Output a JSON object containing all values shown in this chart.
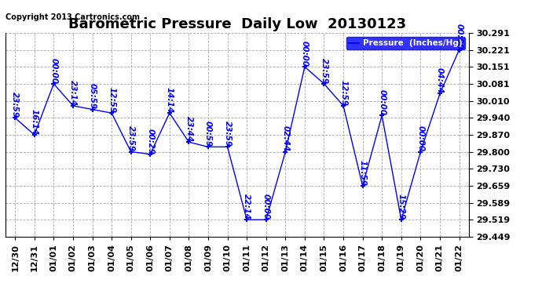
{
  "title": "Barometric Pressure  Daily Low  20130123",
  "copyright": "Copyright 2013 Cartronics.com",
  "legend_label": "Pressure  (Inches/Hg)",
  "x_labels": [
    "12/30",
    "12/31",
    "01/01",
    "01/02",
    "01/03",
    "01/04",
    "01/05",
    "01/06",
    "01/07",
    "01/08",
    "01/09",
    "01/10",
    "01/11",
    "01/12",
    "01/13",
    "01/14",
    "01/15",
    "01/16",
    "01/17",
    "01/18",
    "01/19",
    "01/20",
    "01/21",
    "01/22"
  ],
  "y_values": [
    29.94,
    29.87,
    30.081,
    29.99,
    29.975,
    29.96,
    29.8,
    29.79,
    29.96,
    29.84,
    29.82,
    29.82,
    29.519,
    29.519,
    29.8,
    30.151,
    30.081,
    29.99,
    29.659,
    29.95,
    29.519,
    29.8,
    30.04,
    30.221
  ],
  "point_labels": [
    "23:59",
    "16:14",
    "00:00",
    "23:14",
    "05:59",
    "12:59",
    "23:59",
    "00:29",
    "14:14",
    "23:44",
    "00:59",
    "23:59",
    "22:14",
    "00:00",
    "02:44",
    "00:00",
    "23:59",
    "12:59",
    "11:59",
    "00:00",
    "15:29",
    "00:00",
    "04:44",
    "00:00"
  ],
  "ylim_min": 29.449,
  "ylim_max": 30.291,
  "yticks": [
    29.449,
    29.519,
    29.589,
    29.659,
    29.73,
    29.8,
    29.87,
    29.94,
    30.01,
    30.081,
    30.151,
    30.221,
    30.291
  ],
  "line_color": "blue",
  "bg_color": "white",
  "grid_color": "#aaaaaa",
  "title_fontsize": 13,
  "label_fontsize": 7.5,
  "tick_fontsize": 8,
  "copyright_fontsize": 7
}
